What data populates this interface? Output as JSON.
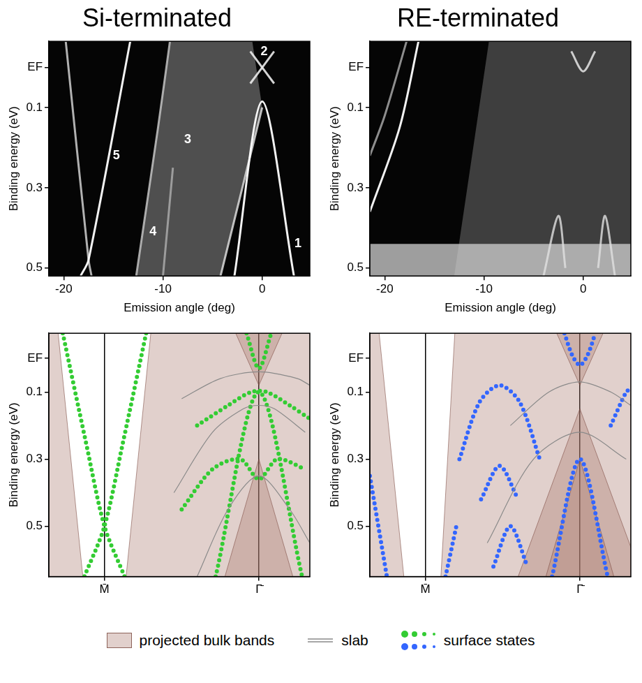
{
  "chart_data": [
    {
      "type": "line",
      "title": "Si-terminated",
      "x_label": "Emission angle (deg)",
      "y_label": "Binding energy (eV)",
      "xlim": [
        -21.5,
        4.8
      ],
      "xticks": [
        -20,
        -10,
        0
      ],
      "ylim": [
        0.52,
        -0.065
      ],
      "yticks": [
        {
          "value": 0,
          "label": "EF"
        },
        0.1,
        0.3,
        0.5
      ],
      "grid": false,
      "series": [
        {
          "type": "area",
          "color": "rgba(140,140,140,0.55)",
          "x": [
            -9.3,
            -1,
            0,
            -4.2,
            -12.7
          ],
          "values": [
            -0.065,
            -0.065,
            0.1,
            0.52,
            0.52
          ]
        },
        {
          "color": "rgba(255,255,255,0.95)",
          "x": [
            -2.8,
            0,
            3.2
          ],
          "values": [
            0.52,
            0.085,
            0.52
          ]
        },
        {
          "color": "rgba(230,230,230,0.8)",
          "x": [
            -4.2,
            0
          ],
          "values": [
            0.52,
            0.1
          ]
        },
        {
          "color": "rgba(235,235,235,0.9)",
          "x": [
            -1.2,
            1.2
          ],
          "values": [
            -0.04,
            0.04
          ]
        },
        {
          "color": "rgba(235,235,235,0.9)",
          "x": [
            -1.2,
            1.2
          ],
          "values": [
            0.04,
            -0.04
          ]
        },
        {
          "color": "rgba(200,200,200,0.8)",
          "x": [
            -9.3,
            -10.5,
            -12.7
          ],
          "values": [
            -0.065,
            0.15,
            0.52
          ]
        },
        {
          "color": "rgba(190,190,190,0.7)",
          "x": [
            -9,
            -10
          ],
          "values": [
            0.25,
            0.52
          ]
        },
        {
          "color": "rgba(255,255,255,0.95)",
          "x": [
            -13.3,
            -17.5,
            -18.3
          ],
          "values": [
            -0.065,
            0.48,
            0.52
          ]
        },
        {
          "color": "rgba(220,220,220,0.8)",
          "x": [
            -19.8,
            -17.5,
            -17.2
          ],
          "values": [
            -0.065,
            0.48,
            0.52
          ]
        }
      ],
      "annotations": [
        {
          "text": "1",
          "x": 3.6,
          "y": 0.44
        },
        {
          "text": "2",
          "x": 0.2,
          "y": -0.04
        },
        {
          "text": "3",
          "x": -7.5,
          "y": 0.18
        },
        {
          "text": "4",
          "x": -11,
          "y": 0.41
        },
        {
          "text": "5",
          "x": -14.7,
          "y": 0.22
        }
      ]
    },
    {
      "type": "line",
      "title": "RE-terminated",
      "x_label": "Emission angle (deg)",
      "y_label": "Binding energy (eV)",
      "xlim": [
        -21.5,
        4.8
      ],
      "xticks": [
        -20,
        -10,
        0
      ],
      "ylim": [
        0.52,
        -0.065
      ],
      "yticks": [
        {
          "value": 0,
          "label": "EF"
        },
        0.1,
        0.3,
        0.5
      ],
      "grid": false,
      "series": [
        {
          "type": "area",
          "color": "rgba(110,110,110,0.55)",
          "x": [
            -9.5,
            4.8,
            4.8,
            -13
          ],
          "values": [
            -0.065,
            -0.065,
            0.52,
            0.52
          ]
        },
        {
          "type": "area",
          "color": "rgba(210,210,210,0.75)",
          "x": [
            -21.5,
            4.8,
            4.8,
            -21.5
          ],
          "values": [
            0.44,
            0.44,
            0.52,
            0.52
          ]
        },
        {
          "color": "rgba(255,255,255,0.95)",
          "x": [
            -16.6,
            -18.5,
            -21.5
          ],
          "values": [
            -0.065,
            0.15,
            0.36
          ]
        },
        {
          "color": "rgba(200,200,200,0.7)",
          "x": [
            -17.8,
            -20,
            -21.5
          ],
          "values": [
            -0.065,
            0.12,
            0.22
          ]
        },
        {
          "color": "rgba(230,230,230,0.85)",
          "x": [
            -1.2,
            0,
            1.2
          ],
          "values": [
            -0.04,
            0.01,
            -0.04
          ]
        },
        {
          "color": "rgba(225,225,225,0.8)",
          "x": [
            -4,
            -2.5,
            -1.8
          ],
          "values": [
            0.52,
            0.37,
            0.5
          ]
        },
        {
          "color": "rgba(225,225,225,0.8)",
          "x": [
            1.5,
            2.2,
            3.2
          ],
          "values": [
            0.5,
            0.37,
            0.52
          ]
        }
      ]
    },
    {
      "type": "line",
      "y_label": "Binding energy (eV)",
      "xlim": [
        -0.36,
        1.33
      ],
      "xticks": [
        {
          "value": 0,
          "label": "M̄"
        },
        {
          "value": 1,
          "label": "Γ̄"
        }
      ],
      "ylim": [
        0.65,
        -0.075
      ],
      "yticks": [
        {
          "value": 0,
          "label": "EF"
        },
        0.1,
        0.3,
        0.5
      ],
      "grid": "x",
      "legend": "bottom",
      "series": [
        {
          "name": "projected bulk bands",
          "type": "area",
          "color": "rgba(170,120,110,0.35)",
          "x": [
            -0.36,
            -0.3,
            -0.14,
            -0.36
          ],
          "values": [
            -0.075,
            -0.075,
            0.65,
            0.65
          ]
        },
        {
          "name": "projected bulk bands",
          "type": "area",
          "color": "rgba(170,120,110,0.35)",
          "x": [
            0.3,
            1.33,
            1.33,
            0.14
          ],
          "values": [
            -0.075,
            -0.075,
            0.65,
            0.65
          ]
        },
        {
          "name": "projected bulk bands",
          "type": "area",
          "color": "rgba(170,120,110,0.35)",
          "x": [
            0.78,
            1,
            1.22
          ],
          "values": [
            0.65,
            0.3,
            0.65
          ]
        },
        {
          "name": "projected bulk bands",
          "type": "area",
          "color": "rgba(170,120,110,0.35)",
          "x": [
            0.85,
            1,
            1.15
          ],
          "values": [
            -0.075,
            0.08,
            -0.075
          ]
        },
        {
          "name": "slab",
          "line_style": "solid",
          "color": "#8a8a8a",
          "x": [
            0.45,
            0.7,
            0.9,
            1,
            1.1,
            1.3
          ],
          "values": [
            0.4,
            0.22,
            0.15,
            0.14,
            0.15,
            0.22
          ]
        },
        {
          "name": "slab",
          "line_style": "solid",
          "color": "#8a8a8a",
          "x": [
            0.6,
            0.8,
            1,
            1.2,
            1.33
          ],
          "values": [
            0.65,
            0.45,
            0.35,
            0.45,
            0.55
          ]
        },
        {
          "name": "slab",
          "line_style": "solid",
          "color": "#8a8a8a",
          "x": [
            0.5,
            0.75,
            1,
            1.25,
            1.33
          ],
          "values": [
            0.12,
            0.06,
            0.04,
            0.06,
            0.08
          ]
        },
        {
          "name": "surface states",
          "line_style": "dotted",
          "color": "#33cc33",
          "x": [
            -0.27,
            -0.12,
            0,
            0.13
          ],
          "values": [
            -0.075,
            0.25,
            0.5,
            0.65
          ]
        },
        {
          "name": "surface states",
          "line_style": "dotted",
          "color": "#33cc33",
          "x": [
            0.27,
            0.12,
            0,
            -0.13
          ],
          "values": [
            -0.075,
            0.25,
            0.5,
            0.65
          ]
        },
        {
          "name": "surface states",
          "line_style": "dotted",
          "color": "#33cc33",
          "x": [
            0.72,
            1,
            1.28
          ],
          "values": [
            0.65,
            0.1,
            0.65
          ]
        },
        {
          "name": "surface states",
          "line_style": "dotted",
          "color": "#33cc33",
          "x": [
            0.92,
            1,
            1.08
          ],
          "values": [
            -0.075,
            0.03,
            -0.075
          ]
        },
        {
          "name": "surface states",
          "line_style": "dotted",
          "color": "#33cc33",
          "x": [
            0.6,
            0.8,
            0.95,
            1.05,
            1.2,
            1.33
          ],
          "values": [
            0.2,
            0.14,
            0.1,
            0.1,
            0.14,
            0.18
          ]
        },
        {
          "name": "surface states",
          "line_style": "dotted",
          "color": "#33cc33",
          "x": [
            0.5,
            0.7,
            0.88,
            1,
            1.12,
            1.3
          ],
          "values": [
            0.45,
            0.33,
            0.3,
            0.36,
            0.3,
            0.33
          ]
        }
      ]
    },
    {
      "type": "line",
      "y_label": "Binding energy (eV)",
      "xlim": [
        -0.36,
        1.33
      ],
      "xticks": [
        {
          "value": 0,
          "label": "M̄"
        },
        {
          "value": 1,
          "label": "Γ̄"
        }
      ],
      "ylim": [
        0.65,
        -0.075
      ],
      "yticks": [
        {
          "value": 0,
          "label": "EF"
        },
        0.1,
        0.3,
        0.5
      ],
      "grid": "x",
      "legend": "bottom",
      "series": [
        {
          "name": "projected bulk bands",
          "type": "area",
          "color": "rgba(170,120,110,0.35)",
          "x": [
            -0.36,
            -0.3,
            -0.14,
            -0.36
          ],
          "values": [
            -0.075,
            -0.075,
            0.65,
            0.65
          ]
        },
        {
          "name": "projected bulk bands",
          "type": "area",
          "color": "rgba(170,120,110,0.35)",
          "x": [
            0.19,
            1.33,
            1.33,
            0.1
          ],
          "values": [
            -0.075,
            -0.075,
            0.65,
            0.65
          ]
        },
        {
          "name": "projected bulk bands",
          "type": "area",
          "color": "rgba(170,120,110,0.35)",
          "x": [
            0.6,
            1,
            1.4
          ],
          "values": [
            0.65,
            0.15,
            0.65
          ]
        },
        {
          "name": "projected bulk bands",
          "type": "area",
          "color": "rgba(170,120,110,0.35)",
          "x": [
            0.78,
            1,
            1.22
          ],
          "values": [
            0.65,
            0.3,
            0.65
          ]
        },
        {
          "name": "projected bulk bands",
          "type": "area",
          "color": "rgba(170,120,110,0.35)",
          "x": [
            0.85,
            1,
            1.15
          ],
          "values": [
            -0.075,
            0.08,
            -0.075
          ]
        },
        {
          "name": "slab",
          "line_style": "solid",
          "color": "#8a8a8a",
          "x": [
            0.4,
            0.7,
            1,
            1.3
          ],
          "values": [
            0.55,
            0.3,
            0.22,
            0.3
          ]
        },
        {
          "name": "slab",
          "line_style": "solid",
          "color": "#8a8a8a",
          "x": [
            0.55,
            0.8,
            1,
            1.2,
            1.33
          ],
          "values": [
            0.2,
            0.1,
            0.07,
            0.1,
            0.14
          ]
        },
        {
          "name": "surface states",
          "line_style": "dotted",
          "color": "#3366ff",
          "x": [
            -0.36,
            -0.25
          ],
          "values": [
            0.35,
            0.65
          ]
        },
        {
          "name": "surface states",
          "line_style": "dotted",
          "color": "#3366ff",
          "x": [
            0.13,
            0.2
          ],
          "values": [
            0.65,
            0.5
          ]
        },
        {
          "name": "surface states",
          "line_style": "dotted",
          "color": "#3366ff",
          "x": [
            0.9,
            0.95,
            1,
            1.05,
            1.1
          ],
          "values": [
            -0.075,
            -0.01,
            0.02,
            -0.01,
            -0.075
          ]
        },
        {
          "name": "surface states",
          "line_style": "dotted",
          "color": "#3366ff",
          "x": [
            0.82,
            1,
            1.18
          ],
          "values": [
            0.65,
            0.3,
            0.65
          ]
        },
        {
          "name": "surface states",
          "line_style": "dotted",
          "color": "#3366ff",
          "x": [
            0.22,
            0.35,
            0.48,
            0.61,
            0.74
          ],
          "values": [
            0.3,
            0.13,
            0.08,
            0.13,
            0.3
          ]
        },
        {
          "name": "surface states",
          "line_style": "dotted",
          "color": "#3366ff",
          "x": [
            0.36,
            0.48,
            0.6
          ],
          "values": [
            0.42,
            0.32,
            0.42
          ]
        },
        {
          "name": "surface states",
          "line_style": "dotted",
          "color": "#3366ff",
          "x": [
            0.44,
            0.55,
            0.66
          ],
          "values": [
            0.62,
            0.5,
            0.62
          ]
        },
        {
          "name": "surface states",
          "line_style": "dotted",
          "color": "#3366ff",
          "x": [
            1.2,
            1.3,
            1.33
          ],
          "values": [
            0.2,
            0.1,
            0.09
          ]
        }
      ]
    }
  ]
}
